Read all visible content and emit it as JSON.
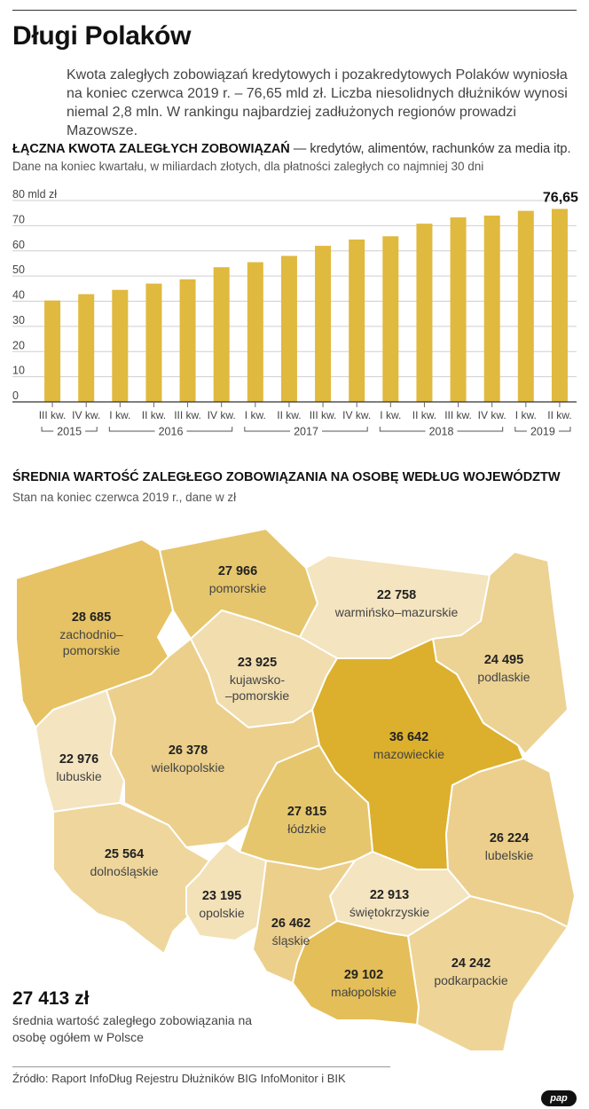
{
  "title": "Długi Polaków",
  "intro": "Kwota zaległych zobowiązań kredytowych i pozakredytowych Polaków wyniosła na koniec czerwca 2019 r. – 76,65 mld zł. Liczba niesolidnych dłużników wynosi niemal 2,8 mln. W rankingu najbardziej zadłużonych regionów prowadzi Mazowsze.",
  "section1": {
    "heading": "ŁĄCZNA KWOTA ZALEGŁYCH ZOBOWIĄZAŃ",
    "heading_rest": " — kredytów, alimentów, rachunków za media itp.",
    "subheading": "Dane na koniec kwartału, w miliardach złotych, dla płatności zaległych co najmniej 30 dni"
  },
  "section2": {
    "heading": "ŚREDNIA WARTOŚĆ ZALEGŁEGO ZOBOWIĄZANIA NA OSOBĘ WEDŁUG WOJEWÓDZTW",
    "subheading": "Stan na koniec czerwca 2019 r., dane w zł"
  },
  "total": {
    "value": "27 413 zł",
    "label": "średnia wartość zaległego zobowiązania na osobę ogółem w Polsce"
  },
  "source": "Źródło: Raport InfoDług Rejestru Dłużników BIG InfoMonitor i BIK",
  "logo": "pap",
  "colors": {
    "bar": "#e0b93f",
    "axis": "#333333",
    "grid": "#cfcfcf"
  },
  "chart_data": [
    {
      "type": "bar",
      "title": "ŁĄCZNA KWOTA ZALEGŁYCH ZOBOWIĄZAŃ",
      "ylabel": "mld zł",
      "ylim": [
        0,
        80
      ],
      "yticks": [
        {
          "value": 0,
          "label": "0"
        },
        {
          "value": 10,
          "label": "10"
        },
        {
          "value": 20,
          "label": "20"
        },
        {
          "value": 30,
          "label": "30"
        },
        {
          "value": 40,
          "label": "40"
        },
        {
          "value": 50,
          "label": "50"
        },
        {
          "value": 60,
          "label": "60"
        },
        {
          "value": 70,
          "label": "70"
        },
        {
          "value": 80,
          "label": "80 mld zł"
        }
      ],
      "grid": true,
      "categories": [
        "III kw.",
        "IV kw.",
        "I kw.",
        "II kw.",
        "III kw.",
        "IV kw.",
        "I kw.",
        "II kw.",
        "III kw.",
        "IV kw.",
        "I kw.",
        "II kw.",
        "III kw.",
        "IV kw.",
        "I kw.",
        "II kw."
      ],
      "values": [
        40.3,
        42.8,
        44.5,
        47.0,
        48.7,
        53.5,
        55.5,
        58.0,
        62.0,
        64.5,
        65.8,
        70.8,
        73.3,
        74.0,
        75.9,
        76.65
      ],
      "years": [
        {
          "label": "2015",
          "start": 0,
          "end": 1
        },
        {
          "label": "2016",
          "start": 2,
          "end": 5
        },
        {
          "label": "2017",
          "start": 6,
          "end": 9
        },
        {
          "label": "2018",
          "start": 10,
          "end": 13
        },
        {
          "label": "2019",
          "start": 14,
          "end": 15
        }
      ],
      "data_labels": [
        {
          "index": 15,
          "label": "76,65"
        }
      ]
    },
    {
      "type": "choropleth",
      "title": "ŚREDNIA WARTOŚĆ ZALEGŁEGO ZOBOWIĄZANIA NA OSOBĘ WEDŁUG WOJEWÓDZTW",
      "unit": "zł",
      "regions": [
        {
          "id": "zachodniopomorskie",
          "name": "zachodnio–pomorskie",
          "value": 28685,
          "label": "28 685",
          "color": "#e6c264"
        },
        {
          "id": "pomorskie",
          "name": "pomorskie",
          "value": 27966,
          "label": "27 966",
          "color": "#e6c66c"
        },
        {
          "id": "warminsko-mazurskie",
          "name": "warmińsko–mazurskie",
          "value": 22758,
          "label": "22 758",
          "color": "#f4e4bf"
        },
        {
          "id": "podlaskie",
          "name": "podlaskie",
          "value": 24495,
          "label": "24 495",
          "color": "#ecd293"
        },
        {
          "id": "kujawsko-pomorskie",
          "name": "kujawsko-–pomorskie",
          "value": 23925,
          "label": "23 925",
          "color": "#f1ddae"
        },
        {
          "id": "mazowieckie",
          "name": "mazowieckie",
          "value": 36642,
          "label": "36 642",
          "color": "#dcb02c"
        },
        {
          "id": "lubuskie",
          "name": "lubuskie",
          "value": 22976,
          "label": "22 976",
          "color": "#f4e4c0"
        },
        {
          "id": "wielkopolskie",
          "name": "wielkopolskie",
          "value": 26378,
          "label": "26 378",
          "color": "#ebcf8b"
        },
        {
          "id": "lodzkie",
          "name": "łódzkie",
          "value": 27815,
          "label": "27 815",
          "color": "#e6c66c"
        },
        {
          "id": "lubelskie",
          "name": "lubelskie",
          "value": 26224,
          "label": "26 224",
          "color": "#eccf8c"
        },
        {
          "id": "dolnoslaskie",
          "name": "dolnośląskie",
          "value": 25564,
          "label": "25 564",
          "color": "#eed69c"
        },
        {
          "id": "opolskie",
          "name": "opolskie",
          "value": 23195,
          "label": "23 195",
          "color": "#f3e1b8"
        },
        {
          "id": "swietokrzyskie",
          "name": "świętokrzyskie",
          "value": 22913,
          "label": "22 913",
          "color": "#f4e4c0"
        },
        {
          "id": "slaskie",
          "name": "śląskie",
          "value": 26462,
          "label": "26 462",
          "color": "#ebcf8b"
        },
        {
          "id": "podkarpackie",
          "name": "podkarpackie",
          "value": 24242,
          "label": "24 242",
          "color": "#eed597"
        },
        {
          "id": "malopolskie",
          "name": "małopolskie",
          "value": 29102,
          "label": "29 102",
          "color": "#e4be58"
        }
      ]
    }
  ]
}
